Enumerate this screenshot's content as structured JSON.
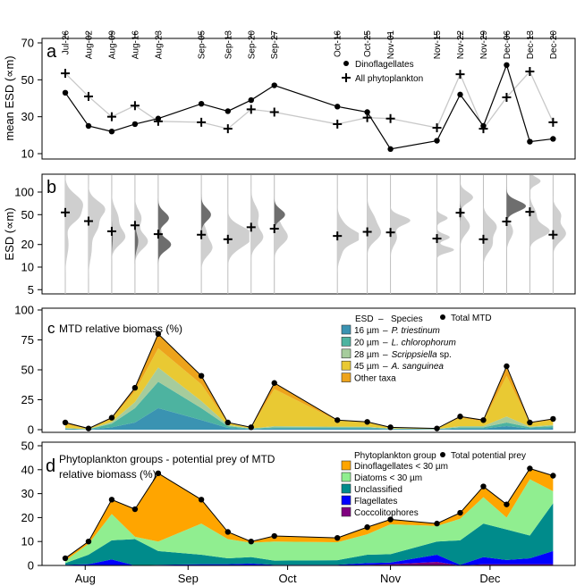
{
  "chart_data": [
    {
      "panel": "a",
      "type": "line",
      "panel_label": "a",
      "ylabel": "mean ESD (∝m)",
      "ylim": [
        10,
        70
      ],
      "yticks": [
        "10",
        "30",
        "50",
        "70"
      ],
      "dates": [
        "Jul-26",
        "Aug-02",
        "Aug-09",
        "Aug-16",
        "Aug-23",
        "Sep-05",
        "Sep-13",
        "Sep-20",
        "Sep-27",
        "Oct-16",
        "Oct-25",
        "Nov-01",
        "Nov-15",
        "Nov-22",
        "Nov-29",
        "Dec-06",
        "Dec-13",
        "Dec-20"
      ],
      "day_offsets": [
        0,
        7,
        14,
        21,
        28,
        41,
        49,
        56,
        63,
        82,
        91,
        98,
        112,
        119,
        126,
        133,
        140,
        147
      ],
      "series": [
        {
          "name": "Dinoflagellates",
          "marker": "dot",
          "color": "#000000",
          "values": [
            43,
            25,
            22,
            26,
            29,
            37,
            33,
            39,
            47,
            35.5,
            32.5,
            12.5,
            17,
            42,
            25,
            58,
            16.5,
            18
          ]
        },
        {
          "name": "All phytoplankton",
          "marker": "plus",
          "color": "#c8c8c8",
          "values": [
            53.5,
            41,
            30,
            36,
            27.5,
            27,
            23.5,
            34,
            32.5,
            26,
            29.5,
            29,
            24,
            53,
            23.5,
            40.5,
            54.5,
            27
          ]
        }
      ]
    },
    {
      "panel": "b",
      "type": "violin",
      "panel_label": "b",
      "ylabel": "ESD (∝m)",
      "yscale": "log",
      "ylim": [
        4.5,
        170
      ],
      "yticks": [
        "5",
        "10",
        "20",
        "50",
        "100"
      ],
      "ytick_values": [
        5,
        10,
        20,
        50,
        100
      ],
      "note": "size distributions per date; components = [ESD µm, log10 spread, relative density]",
      "all_phytoplankton": [
        [
          [
            70,
            0.12,
            0.8
          ],
          [
            45,
            0.08,
            0.4
          ],
          [
            20,
            0.15,
            0.15
          ]
        ],
        [
          [
            60,
            0.1,
            0.75
          ],
          [
            35,
            0.1,
            0.4
          ],
          [
            18,
            0.15,
            0.15
          ]
        ],
        [
          [
            25,
            0.1,
            0.6
          ],
          [
            45,
            0.12,
            0.3
          ]
        ],
        [
          [
            22,
            0.1,
            0.6
          ],
          [
            45,
            0.1,
            0.3
          ]
        ],
        [
          [
            22,
            0.1,
            0.3
          ],
          [
            45,
            0.1,
            0.2
          ]
        ],
        [
          [
            18,
            0.1,
            0.5
          ],
          [
            30,
            0.1,
            0.2
          ]
        ],
        [
          [
            28,
            0.1,
            1.0
          ],
          [
            20,
            0.1,
            0.5
          ]
        ],
        [
          [
            25,
            0.1,
            0.55
          ],
          [
            50,
            0.12,
            0.35
          ]
        ],
        [
          [
            25,
            0.1,
            0.6
          ],
          [
            40,
            0.1,
            0.2
          ]
        ],
        [
          [
            25,
            0.08,
            1.0
          ],
          [
            35,
            0.1,
            0.3
          ],
          [
            16,
            0.1,
            0.2
          ]
        ],
        [
          [
            28,
            0.1,
            0.6
          ],
          [
            45,
            0.1,
            0.3
          ]
        ],
        [
          [
            42,
            0.06,
            0.9
          ],
          [
            25,
            0.1,
            0.3
          ]
        ],
        [
          [
            45,
            0.04,
            0.5
          ],
          [
            25,
            0.04,
            0.6
          ],
          [
            17,
            0.04,
            0.8
          ]
        ],
        [
          [
            85,
            0.07,
            0.6
          ],
          [
            35,
            0.1,
            0.45
          ]
        ],
        [
          [
            35,
            0.1,
            0.6
          ],
          [
            20,
            0.1,
            0.4
          ]
        ],
        [
          [
            30,
            0.1,
            0.3
          ],
          [
            65,
            0.07,
            0.3
          ]
        ],
        [
          [
            140,
            0.05,
            0.5
          ],
          [
            30,
            0.08,
            0.9
          ],
          [
            50,
            0.1,
            0.3
          ]
        ],
        [
          [
            28,
            0.1,
            0.6
          ],
          [
            50,
            0.08,
            0.35
          ]
        ]
      ],
      "dinoflagellates": [
        [],
        [],
        [
          [
            25,
            0.1,
            0.05
          ]
        ],
        [
          [
            22,
            0.1,
            0.15
          ]
        ],
        [
          [
            45,
            0.08,
            0.5
          ],
          [
            20,
            0.08,
            0.6
          ]
        ],
        [
          [
            50,
            0.08,
            0.45
          ]
        ],
        [],
        [],
        [
          [
            50,
            0.07,
            0.5
          ]
        ],
        [],
        [],
        [],
        [],
        [
          [
            55,
            0.05,
            0.08
          ]
        ],
        [],
        [
          [
            65,
            0.07,
            0.9
          ]
        ],
        [],
        []
      ],
      "mean_all_phytoplankton": [
        53.5,
        41,
        30,
        36,
        27.5,
        27,
        23.5,
        34,
        32.5,
        26,
        29.5,
        29,
        24,
        53,
        23.5,
        40.5,
        54.5,
        27
      ]
    },
    {
      "panel": "c",
      "type": "area",
      "stacked": true,
      "panel_label": "c",
      "title": "MTD relative biomass (%)",
      "ylim": [
        0,
        100
      ],
      "yticks": [
        "0",
        "25",
        "50",
        "75",
        "100"
      ],
      "legend_header": {
        "esd": "ESD",
        "dash": "–",
        "species": "Species",
        "total": "Total MTD"
      },
      "legend_position": "top-right",
      "series": [
        {
          "esd": "16 µm",
          "species_italic": "P. triestinum",
          "species_suffix": "",
          "color": "#3a93b2",
          "values": [
            0.5,
            0.2,
            2,
            6,
            18,
            8,
            1.5,
            0.5,
            1,
            1,
            1,
            0.5,
            0.3,
            1,
            1,
            3,
            1,
            1.5
          ]
        },
        {
          "esd": "20 µm",
          "species_italic": "L. chlorophorum",
          "species_suffix": "",
          "color": "#4db3a0",
          "values": [
            0.5,
            0.2,
            3,
            12,
            22,
            10,
            1.5,
            0.3,
            1,
            1,
            1,
            0.3,
            0.2,
            1,
            1,
            3,
            1,
            1.5
          ]
        },
        {
          "esd": "28 µm",
          "species_italic": "Scrippsiella",
          "species_suffix": " sp.",
          "color": "#a6cc9c",
          "values": [
            0.5,
            0.1,
            1.5,
            5,
            12,
            6,
            1,
            0.2,
            1,
            0.5,
            0.5,
            0.2,
            0.1,
            1,
            1,
            5,
            0.5,
            1
          ]
        },
        {
          "esd": "45 µm",
          "species_italic": "A. sanguinea",
          "species_suffix": "",
          "color": "#e9c933",
          "values": [
            3,
            0.3,
            2.5,
            9,
            16,
            14,
            1.5,
            0.7,
            31,
            5,
            3.5,
            0.7,
            0.3,
            7,
            4,
            34,
            3,
            4
          ]
        },
        {
          "esd": "",
          "species_italic": "",
          "species_suffix": "Other taxa",
          "color": "#eda31c",
          "values": [
            1.5,
            0.2,
            1,
            3,
            12,
            7,
            0.5,
            0.3,
            5,
            0.5,
            0.5,
            0.3,
            0.1,
            1,
            1,
            8,
            0.5,
            1
          ]
        }
      ],
      "total": [
        6,
        1,
        10,
        35,
        80,
        45,
        6,
        2,
        39,
        8,
        6.5,
        2,
        1,
        11,
        8,
        53,
        6,
        9
      ]
    },
    {
      "panel": "d",
      "type": "area",
      "stacked": true,
      "panel_label": "d",
      "title_line1": "Phytoplankton groups - potential prey of MTD",
      "title_line2": "relative biomass (%)",
      "ylim": [
        0,
        50
      ],
      "yticks": [
        "0",
        "10",
        "20",
        "30",
        "40",
        "50"
      ],
      "xticks": [
        "Aug",
        "Sep",
        "Oct",
        "Nov",
        "Dec"
      ],
      "xtick_day_offsets": [
        6,
        37,
        67,
        98,
        128
      ],
      "legend_header": "Phytoplankton group",
      "legend_total": "Total potential prey",
      "legend_position": "top-right",
      "series": [
        {
          "name": "Coccolitophores",
          "color": "#7f007f",
          "values": [
            0,
            0,
            0,
            0,
            0,
            0,
            0,
            0,
            0,
            0,
            0.3,
            0.5,
            1.5,
            0,
            0.5,
            0.5,
            0.5,
            0.5
          ]
        },
        {
          "name": "Flagellates",
          "color": "#0000ff",
          "values": [
            0.3,
            0.5,
            2.5,
            0,
            0.3,
            0.5,
            0.5,
            0.8,
            0.3,
            0.3,
            0.7,
            0.7,
            3,
            0.3,
            3,
            1.8,
            2.5,
            5.5
          ]
        },
        {
          "name": "Unclassified",
          "color": "#008b8b",
          "values": [
            0.7,
            4,
            8,
            11,
            5.7,
            4,
            2.5,
            2.7,
            1.7,
            1.9,
            3.5,
            3.5,
            5.5,
            10.2,
            14,
            12.7,
            9.5,
            20
          ]
        },
        {
          "name": "Diatoms < 30 µm",
          "color": "#90ee90",
          "values": [
            1,
            4.5,
            11,
            1,
            4,
            13,
            8,
            6,
            8,
            7.5,
            8.5,
            12.5,
            6.5,
            9,
            11,
            5,
            23.5,
            5
          ]
        },
        {
          "name": "Dinoflagellates < 30 µm",
          "color": "#ffa500",
          "values": [
            1,
            1,
            6,
            11.5,
            28.5,
            10,
            3,
            0.5,
            2.3,
            1.8,
            3,
            2,
            1,
            2.5,
            4.5,
            5.5,
            4.5,
            6.5
          ]
        }
      ],
      "total": [
        3,
        10,
        27.5,
        23.5,
        38.5,
        27.5,
        14,
        10,
        12.3,
        11.5,
        16,
        19.2,
        17.5,
        22,
        33,
        25.5,
        40.5,
        37.5
      ]
    }
  ]
}
